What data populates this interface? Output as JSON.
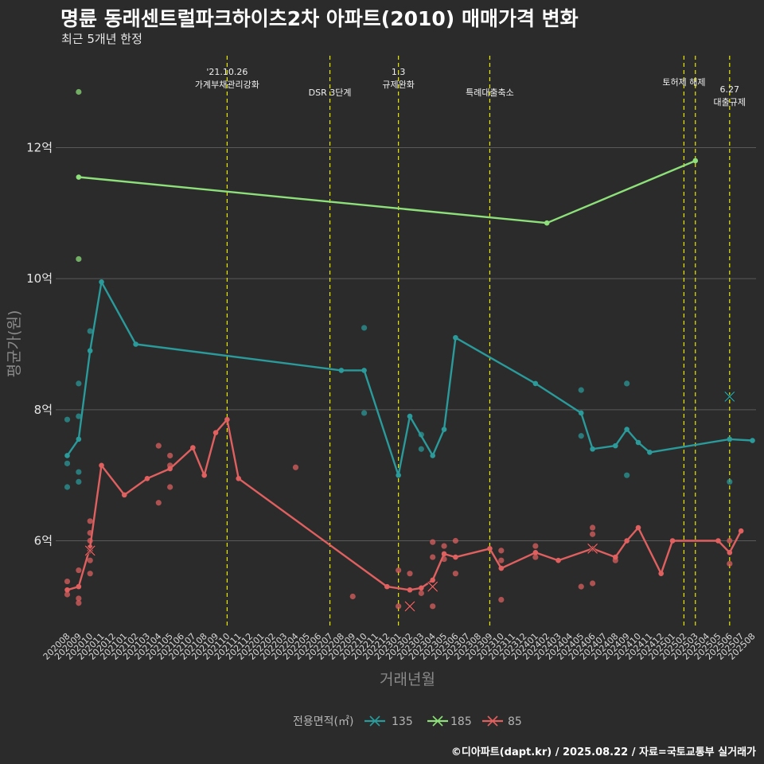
{
  "header": {
    "title": "명륜 동래센트럴파크하이츠2차 아파트(2010) 매매가격 변화",
    "subtitle": "최근 5개년 한정"
  },
  "footer": {
    "credit": "©디아파트(dapt.kr) / 2025.08.22 / 자료=국토교통부 실거래가"
  },
  "chart_data": {
    "type": "line",
    "xlabel": "거래년월",
    "ylabel": "평균가(원)",
    "x_ticks": [
      "202008",
      "202009",
      "202010",
      "202011",
      "202012",
      "202101",
      "202102",
      "202103",
      "202104",
      "202105",
      "202106",
      "202107",
      "202108",
      "202109",
      "202110",
      "202111",
      "202112",
      "202201",
      "202202",
      "202203",
      "202204",
      "202205",
      "202206",
      "202207",
      "202208",
      "202209",
      "202210",
      "202211",
      "202212",
      "202301",
      "202302",
      "202303",
      "202304",
      "202305",
      "202306",
      "202307",
      "202308",
      "202309",
      "202310",
      "202311",
      "202312",
      "202401",
      "202402",
      "202403",
      "202404",
      "202405",
      "202406",
      "202407",
      "202408",
      "202409",
      "202410",
      "202411",
      "202412",
      "202501",
      "202502",
      "202503",
      "202504",
      "202505",
      "202506",
      "202507",
      "202508"
    ],
    "y_ticks": [
      {
        "value": 6,
        "label": "6억"
      },
      {
        "value": 8,
        "label": "8억"
      },
      {
        "value": 10,
        "label": "10억"
      },
      {
        "value": 12,
        "label": "12억"
      }
    ],
    "ylim": [
      4.65,
      13.8
    ],
    "grid": true,
    "legend": {
      "title": "전용면적(㎡)",
      "placement": "bottom",
      "entries": [
        "135",
        "185",
        "85"
      ]
    },
    "events": [
      {
        "x": "202110",
        "lines": [
          "'21.10.26",
          "가계부채관리강화"
        ],
        "level": 0
      },
      {
        "x": "202207",
        "lines": [
          "DSR 3단계"
        ],
        "level": 2
      },
      {
        "x": "202301",
        "lines": [
          "1.3",
          "규제완화"
        ],
        "level": 0
      },
      {
        "x": "202309",
        "lines": [
          "특례대출축소"
        ],
        "level": 2
      },
      {
        "x": "202502",
        "lines": [
          "토허제 해제"
        ],
        "level": 1
      },
      {
        "x": "202503",
        "lines": [],
        "level": 1
      },
      {
        "x": "202506",
        "lines": [
          "6.27",
          "대출규제"
        ],
        "level": 1.7
      }
    ],
    "series": [
      {
        "name": "135",
        "color": "#2a9a9a",
        "line": [
          [
            "202008",
            7.3
          ],
          [
            "202009",
            7.55
          ],
          [
            "202010",
            8.9
          ],
          [
            "202011",
            9.95
          ],
          [
            "202102",
            9.0
          ],
          [
            "202208",
            8.6
          ],
          [
            "202210",
            8.6
          ],
          [
            "202301",
            7.0
          ],
          [
            "202302",
            7.9
          ],
          [
            "202304",
            7.3
          ],
          [
            "202305",
            7.7
          ],
          [
            "202306",
            9.1
          ],
          [
            "202401",
            8.4
          ],
          [
            "202405",
            7.95
          ],
          [
            "202406",
            7.4
          ],
          [
            "202408",
            7.45
          ],
          [
            "202409",
            7.7
          ],
          [
            "202410",
            7.5
          ],
          [
            "202411",
            7.35
          ],
          [
            "202506",
            7.55
          ],
          [
            "202508",
            7.53
          ]
        ],
        "points": [
          [
            "202008",
            7.85
          ],
          [
            "202008",
            7.18
          ],
          [
            "202008",
            6.82
          ],
          [
            "202009",
            8.4
          ],
          [
            "202009",
            7.9
          ],
          [
            "202009",
            7.05
          ],
          [
            "202009",
            6.9
          ],
          [
            "202010",
            9.2
          ],
          [
            "202210",
            9.25
          ],
          [
            "202210",
            7.95
          ],
          [
            "202303",
            7.62
          ],
          [
            "202303",
            7.4
          ],
          [
            "202405",
            8.3
          ],
          [
            "202405",
            7.6
          ],
          [
            "202409",
            8.4
          ],
          [
            "202409",
            7.0
          ],
          [
            "202506",
            6.9
          ]
        ],
        "x_marks": [
          [
            "202506",
            8.2
          ]
        ]
      },
      {
        "name": "185",
        "color": "#8de07a",
        "line": [
          [
            "202009",
            11.55
          ],
          [
            "202402",
            10.85
          ],
          [
            "202503",
            11.8
          ]
        ],
        "points": [
          [
            "202009",
            12.85
          ],
          [
            "202009",
            10.3
          ]
        ],
        "x_marks": []
      },
      {
        "name": "85",
        "color": "#e06060",
        "line": [
          [
            "202008",
            5.25
          ],
          [
            "202009",
            5.3
          ],
          [
            "202010",
            5.9
          ],
          [
            "202011",
            7.15
          ],
          [
            "202101",
            6.7
          ],
          [
            "202103",
            6.95
          ],
          [
            "202105",
            7.1
          ],
          [
            "202107",
            7.42
          ],
          [
            "202108",
            7.0
          ],
          [
            "202109",
            7.65
          ],
          [
            "202110",
            7.85
          ],
          [
            "202111",
            6.95
          ],
          [
            "202212",
            5.3
          ],
          [
            "202302",
            5.25
          ],
          [
            "202303",
            5.28
          ],
          [
            "202304",
            5.4
          ],
          [
            "202305",
            5.8
          ],
          [
            "202306",
            5.75
          ],
          [
            "202309",
            5.88
          ],
          [
            "202310",
            5.58
          ],
          [
            "202401",
            5.82
          ],
          [
            "202403",
            5.7
          ],
          [
            "202406",
            5.88
          ],
          [
            "202408",
            5.75
          ],
          [
            "202409",
            6.0
          ],
          [
            "202410",
            6.2
          ],
          [
            "202412",
            5.5
          ],
          [
            "202501",
            6.0
          ],
          [
            "202505",
            6.0
          ],
          [
            "202506",
            5.82
          ],
          [
            "202507",
            6.15
          ]
        ],
        "points": [
          [
            "202008",
            5.38
          ],
          [
            "202008",
            5.18
          ],
          [
            "202009",
            5.55
          ],
          [
            "202009",
            5.12
          ],
          [
            "202009",
            5.05
          ],
          [
            "202010",
            6.3
          ],
          [
            "202010",
            6.12
          ],
          [
            "202010",
            6.0
          ],
          [
            "202010",
            5.85
          ],
          [
            "202010",
            5.7
          ],
          [
            "202010",
            5.5
          ],
          [
            "202104",
            7.45
          ],
          [
            "202104",
            6.58
          ],
          [
            "202105",
            7.3
          ],
          [
            "202105",
            7.15
          ],
          [
            "202105",
            6.82
          ],
          [
            "202204",
            7.12
          ],
          [
            "202209",
            5.15
          ],
          [
            "202301",
            5.55
          ],
          [
            "202301",
            5.0
          ],
          [
            "202302",
            5.5
          ],
          [
            "202303",
            5.2
          ],
          [
            "202304",
            5.98
          ],
          [
            "202304",
            5.75
          ],
          [
            "202304",
            5.0
          ],
          [
            "202305",
            5.92
          ],
          [
            "202305",
            5.72
          ],
          [
            "202306",
            6.0
          ],
          [
            "202306",
            5.5
          ],
          [
            "202310",
            5.85
          ],
          [
            "202310",
            5.7
          ],
          [
            "202310",
            5.1
          ],
          [
            "202401",
            5.92
          ],
          [
            "202401",
            5.75
          ],
          [
            "202405",
            5.3
          ],
          [
            "202406",
            6.2
          ],
          [
            "202406",
            6.1
          ],
          [
            "202406",
            5.35
          ],
          [
            "202408",
            5.7
          ],
          [
            "202506",
            6.0
          ],
          [
            "202506",
            5.65
          ]
        ],
        "x_marks": [
          [
            "202010",
            5.85
          ],
          [
            "202302",
            5.0
          ],
          [
            "202304",
            5.3
          ],
          [
            "202406",
            5.88
          ]
        ]
      }
    ]
  }
}
